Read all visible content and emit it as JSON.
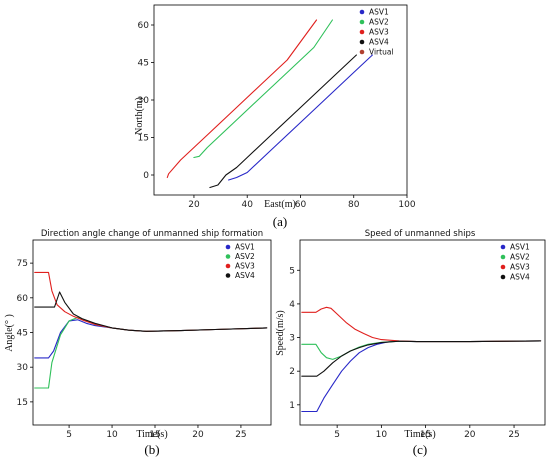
{
  "chart_data": [
    {
      "type": "line",
      "panel_label": "(a)",
      "title": "",
      "xlabel": "East(m)",
      "ylabel": "North(m)",
      "xlim": [
        5,
        100
      ],
      "ylim": [
        -8,
        68
      ],
      "xticks": [
        20,
        40,
        60,
        80,
        100
      ],
      "yticks": [
        0,
        15,
        30,
        45,
        60
      ],
      "grid": false,
      "legend_position": "top-right",
      "series": [
        {
          "name": "ASV1",
          "color": "#2828c8",
          "x": [
            33,
            36,
            40,
            50,
            60,
            70,
            80,
            87
          ],
          "y": [
            -2,
            -1,
            1,
            11,
            21,
            31,
            41,
            48
          ]
        },
        {
          "name": "ASV2",
          "color": "#2fc05a",
          "x": [
            20,
            22,
            25,
            35,
            45,
            55,
            65,
            72
          ],
          "y": [
            7,
            7.5,
            11,
            21,
            31,
            41,
            51,
            62
          ]
        },
        {
          "name": "ASV3",
          "color": "#e0201e",
          "x": [
            10,
            10.5,
            15,
            25,
            35,
            45,
            55,
            66
          ],
          "y": [
            -1,
            0.5,
            6,
            16,
            26,
            36,
            46,
            62
          ]
        },
        {
          "name": "ASV4",
          "color": "#111111",
          "x": [
            26,
            29,
            32,
            36,
            40,
            50,
            60,
            70,
            81
          ],
          "y": [
            -5,
            -4,
            0,
            3,
            7,
            17,
            27,
            37,
            48
          ]
        },
        {
          "name": "Virtual",
          "color": "#b04030",
          "x": [],
          "y": []
        }
      ]
    },
    {
      "type": "line",
      "panel_label": "(b)",
      "title": "Direction angle change of unmanned ship formation",
      "xlabel": "Time(s)",
      "ylabel": "Angle(° )",
      "xlim": [
        0.8,
        28.5
      ],
      "ylim": [
        5,
        85
      ],
      "xticks": [
        5,
        10,
        15,
        20,
        25
      ],
      "yticks": [
        15,
        30,
        45,
        60,
        75
      ],
      "grid": false,
      "legend_position": "top-right",
      "series": [
        {
          "name": "ASV1",
          "color": "#2828c8",
          "x": [
            1,
            2,
            2.6,
            3.2,
            4,
            5,
            6,
            7,
            8,
            10,
            12,
            14,
            18,
            22,
            28
          ],
          "y": [
            34,
            34,
            34,
            37,
            45,
            50,
            50.5,
            49,
            48,
            47,
            46,
            45.5,
            45.8,
            46.3,
            47
          ]
        },
        {
          "name": "ASV2",
          "color": "#2fc05a",
          "x": [
            1,
            2,
            2.6,
            3,
            4,
            5,
            6,
            7,
            8,
            10,
            12,
            14,
            18,
            22,
            28
          ],
          "y": [
            21,
            21,
            21,
            32,
            44,
            50,
            51.5,
            50,
            48.5,
            47,
            46,
            45.5,
            45.8,
            46.3,
            47
          ]
        },
        {
          "name": "ASV3",
          "color": "#e0201e",
          "x": [
            1,
            2,
            2.6,
            3,
            3.6,
            4.5,
            5.5,
            6.5,
            8,
            10,
            12,
            14,
            18,
            22,
            28
          ],
          "y": [
            71,
            71,
            71,
            63,
            57,
            54,
            52,
            50.5,
            48.5,
            47,
            46,
            45.5,
            45.8,
            46.3,
            47
          ]
        },
        {
          "name": "ASV4",
          "color": "#111111",
          "x": [
            1,
            2,
            3.3,
            3.9,
            4.5,
            5.5,
            6.5,
            8,
            10,
            12,
            14,
            18,
            22,
            28
          ],
          "y": [
            56,
            56,
            56,
            62.5,
            58,
            53,
            51,
            49,
            47,
            46,
            45.5,
            45.8,
            46.3,
            47
          ]
        }
      ]
    },
    {
      "type": "line",
      "panel_label": "(c)",
      "title": "Speed of unmanned ships",
      "xlabel": "Time(s)",
      "ylabel": "Speed(m/s)",
      "xlim": [
        0.8,
        28.5
      ],
      "ylim": [
        0.4,
        5.9
      ],
      "xticks": [
        5,
        10,
        15,
        20,
        25
      ],
      "yticks": [
        1,
        2,
        3,
        4,
        5
      ],
      "grid": false,
      "legend_position": "top-right",
      "series": [
        {
          "name": "ASV1",
          "color": "#2828c8",
          "x": [
            1,
            2,
            2.7,
            3.5,
            4.5,
            5.5,
            6.5,
            7.5,
            8.5,
            9.5,
            10.5,
            11.5,
            14,
            20,
            28
          ],
          "y": [
            0.8,
            0.8,
            0.8,
            1.2,
            1.6,
            2.0,
            2.3,
            2.55,
            2.7,
            2.8,
            2.86,
            2.89,
            2.88,
            2.88,
            2.9
          ]
        },
        {
          "name": "ASV2",
          "color": "#2fc05a",
          "x": [
            1,
            2,
            2.6,
            3.2,
            3.8,
            4.5,
            5.5,
            6.5,
            7.5,
            8.5,
            10,
            12,
            14,
            20,
            28
          ],
          "y": [
            2.8,
            2.8,
            2.8,
            2.55,
            2.4,
            2.35,
            2.45,
            2.6,
            2.72,
            2.8,
            2.86,
            2.89,
            2.88,
            2.88,
            2.9
          ]
        },
        {
          "name": "ASV3",
          "color": "#e0201e",
          "x": [
            1,
            2,
            2.6,
            3.2,
            3.8,
            4.3,
            5,
            6,
            7,
            8,
            9,
            10,
            12,
            14,
            20,
            28
          ],
          "y": [
            3.75,
            3.75,
            3.75,
            3.85,
            3.9,
            3.87,
            3.7,
            3.45,
            3.25,
            3.12,
            3.0,
            2.94,
            2.9,
            2.88,
            2.88,
            2.9
          ]
        },
        {
          "name": "ASV4",
          "color": "#111111",
          "x": [
            1,
            2,
            2.7,
            3.5,
            4.5,
            5.5,
            6.5,
            7.5,
            8.5,
            10,
            12,
            14,
            20,
            28
          ],
          "y": [
            1.85,
            1.85,
            1.85,
            2.0,
            2.25,
            2.45,
            2.6,
            2.7,
            2.78,
            2.85,
            2.89,
            2.88,
            2.88,
            2.9
          ]
        }
      ]
    }
  ]
}
